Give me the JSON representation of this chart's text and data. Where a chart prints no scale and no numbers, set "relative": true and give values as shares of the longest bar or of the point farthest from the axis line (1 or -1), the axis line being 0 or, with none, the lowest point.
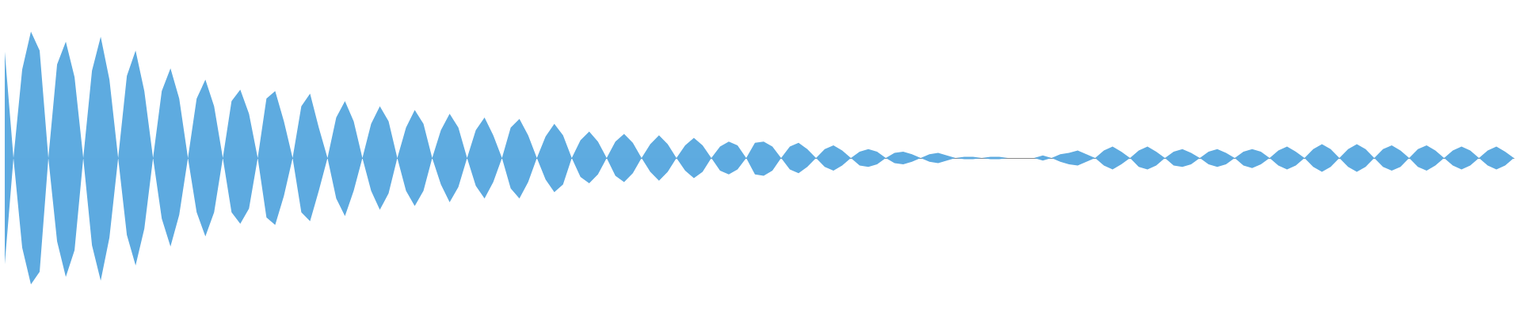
{
  "chart_data": {
    "type": "area",
    "relative": true,
    "tick_labels": false,
    "categories": [
      null,
      null,
      null,
      null,
      null,
      null,
      null,
      null,
      null,
      null,
      null,
      null,
      null,
      null,
      null,
      null,
      null,
      null,
      null,
      null,
      null,
      null,
      null,
      null,
      null,
      null,
      null,
      null,
      null,
      null,
      null,
      null,
      null,
      null,
      null,
      null,
      null,
      null,
      null,
      null,
      null,
      null,
      null,
      null,
      null,
      null,
      null,
      null,
      null,
      null,
      null,
      null,
      null,
      null,
      null,
      null,
      null,
      null,
      null,
      null,
      null,
      null,
      null,
      null,
      null,
      null,
      null,
      null,
      null,
      null,
      null,
      null,
      null,
      null,
      null,
      null,
      null,
      null,
      null,
      null,
      null,
      null,
      null,
      null,
      null,
      null,
      null,
      null,
      null,
      null,
      null,
      null,
      null,
      null,
      null,
      null,
      null,
      null,
      null,
      null,
      null,
      null,
      null,
      null,
      null,
      null,
      null,
      null,
      null,
      null,
      null,
      null,
      null,
      null,
      null,
      null,
      null,
      null,
      null,
      null,
      null,
      null,
      null,
      null,
      null,
      null,
      null,
      null,
      null,
      null,
      null,
      null,
      null,
      null,
      null,
      null,
      null,
      null,
      null,
      null,
      null,
      null,
      null,
      null,
      null,
      null,
      null,
      null,
      null,
      null,
      null,
      null,
      null,
      null,
      null,
      null,
      null,
      null,
      null,
      null,
      null,
      null,
      null,
      null,
      null,
      null,
      null,
      null,
      null,
      null,
      null,
      null,
      null,
      null
    ],
    "series": [
      {
        "color": "#5eabe0",
        "values": [
          0.84,
          0,
          0.7,
          1.0,
          0.85,
          0,
          0.74,
          0.92,
          0.64,
          0,
          0.69,
          0.96,
          0.62,
          0,
          0.65,
          0.85,
          0.53,
          0,
          0.53,
          0.71,
          0.47,
          0,
          0.47,
          0.62,
          0.41,
          0,
          0.45,
          0.54,
          0.35,
          0,
          0.47,
          0.53,
          0.29,
          0,
          0.41,
          0.51,
          0.24,
          0,
          0.32,
          0.45,
          0.29,
          0,
          0.27,
          0.41,
          0.29,
          0,
          0.24,
          0.38,
          0.27,
          0,
          0.22,
          0.35,
          0.24,
          0,
          0.22,
          0.32,
          0.18,
          0,
          0.24,
          0.31,
          0.18,
          0,
          0.17,
          0.27,
          0.18,
          0,
          0.14,
          0.21,
          0.13,
          0,
          0.13,
          0.19,
          0.12,
          0,
          0.11,
          0.18,
          0.11,
          0,
          0.1,
          0.16,
          0.1,
          0,
          0.09,
          0.13,
          0.1,
          0,
          0.12,
          0.13,
          0.09,
          0,
          0.09,
          0.12,
          0.07,
          0,
          0.07,
          0.1,
          0.06,
          0,
          0.05,
          0.07,
          0.05,
          0,
          0.04,
          0.05,
          0.03,
          0,
          0.03,
          0.04,
          0.02,
          0,
          0.01,
          0.01,
          0,
          0.01,
          0.01,
          0,
          0,
          0,
          0,
          0.02,
          0,
          0.03,
          0.04,
          0.06,
          0.03,
          0,
          0.06,
          0.09,
          0.05,
          0,
          0.06,
          0.09,
          0.05,
          0,
          0.05,
          0.07,
          0.04,
          0,
          0.05,
          0.07,
          0.04,
          0,
          0.05,
          0.07,
          0.05,
          0,
          0.06,
          0.09,
          0.05,
          0,
          0.07,
          0.11,
          0.07,
          0,
          0.07,
          0.11,
          0.07,
          0,
          0.07,
          0.1,
          0.06,
          0,
          0.07,
          0.1,
          0.06,
          0,
          0.06,
          0.09,
          0.06,
          0,
          0.06,
          0.09,
          0.05,
          0
        ]
      },
      {
        "color": "#5daae0",
        "values": [
          -0.84,
          0,
          -0.71,
          -1.0,
          -0.9,
          0,
          -0.66,
          -0.94,
          -0.73,
          0,
          -0.69,
          -0.97,
          -0.63,
          0,
          -0.61,
          -0.85,
          -0.56,
          0,
          -0.48,
          -0.7,
          -0.45,
          0,
          -0.43,
          -0.62,
          -0.43,
          0,
          -0.43,
          -0.52,
          -0.4,
          0,
          -0.47,
          -0.53,
          -0.3,
          0,
          -0.43,
          -0.5,
          -0.26,
          0,
          -0.32,
          -0.46,
          -0.26,
          0,
          -0.26,
          -0.41,
          -0.28,
          0,
          -0.26,
          -0.38,
          -0.26,
          0,
          -0.21,
          -0.35,
          -0.23,
          0,
          -0.22,
          -0.32,
          -0.19,
          0,
          -0.24,
          -0.32,
          -0.19,
          0,
          -0.17,
          -0.27,
          -0.21,
          0,
          -0.15,
          -0.2,
          -0.13,
          0,
          -0.14,
          -0.19,
          -0.12,
          0,
          -0.11,
          -0.18,
          -0.11,
          0,
          -0.1,
          -0.16,
          -0.11,
          0,
          -0.1,
          -0.13,
          -0.09,
          0,
          -0.13,
          -0.14,
          -0.1,
          0,
          -0.09,
          -0.12,
          -0.07,
          0,
          -0.07,
          -0.1,
          -0.06,
          0,
          -0.06,
          -0.07,
          -0.05,
          0,
          -0.04,
          -0.05,
          -0.03,
          0,
          -0.03,
          -0.04,
          -0.02,
          0,
          -0.01,
          -0.01,
          0,
          -0.01,
          -0.01,
          0,
          0,
          0,
          0,
          -0.02,
          0,
          -0.03,
          -0.05,
          -0.06,
          -0.03,
          0,
          -0.06,
          -0.09,
          -0.05,
          0,
          -0.07,
          -0.09,
          -0.06,
          0,
          -0.06,
          -0.07,
          -0.05,
          0,
          -0.05,
          -0.07,
          -0.05,
          0,
          -0.06,
          -0.08,
          -0.05,
          0,
          -0.06,
          -0.09,
          -0.06,
          0,
          -0.07,
          -0.11,
          -0.07,
          0,
          -0.07,
          -0.11,
          -0.07,
          0,
          -0.07,
          -0.1,
          -0.07,
          0,
          -0.07,
          -0.1,
          -0.06,
          0,
          -0.06,
          -0.09,
          -0.06,
          0,
          -0.06,
          -0.09,
          -0.06,
          0
        ]
      }
    ]
  }
}
